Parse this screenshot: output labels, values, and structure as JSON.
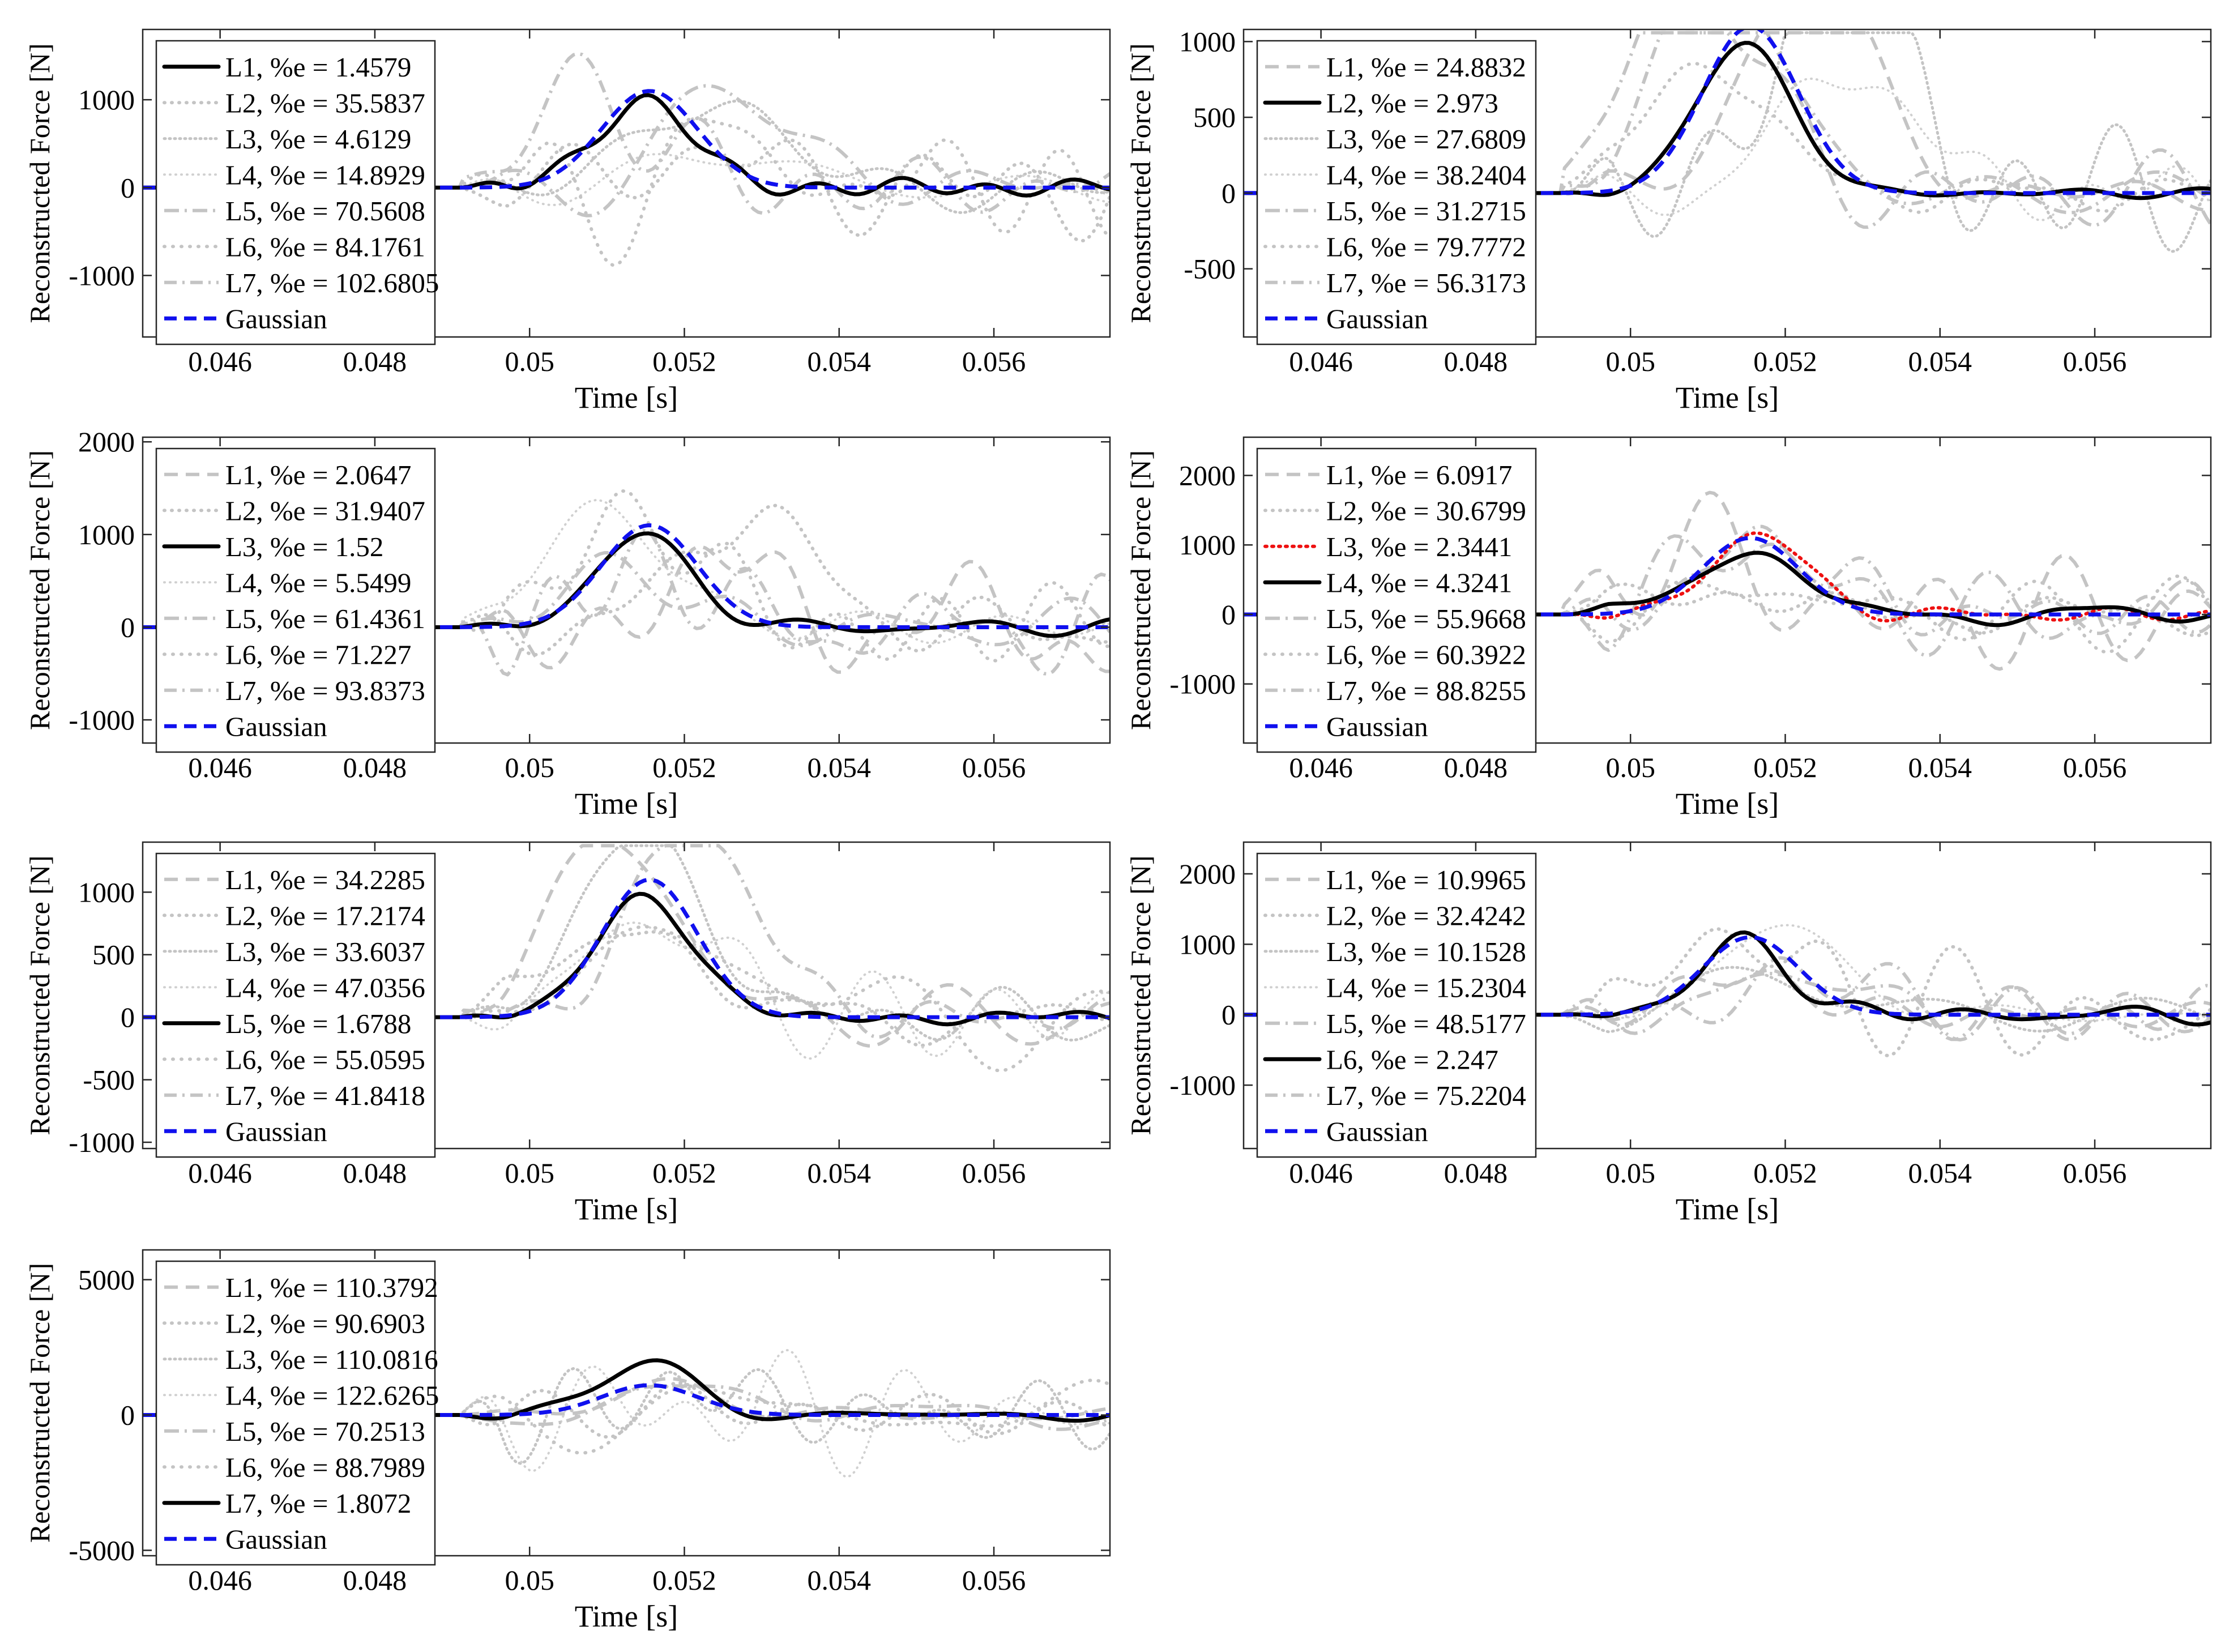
{
  "chart_data": [
    {
      "type": "line",
      "xlabel": "Time [s]",
      "ylabel": "Reconstructed Force [N]",
      "xlim": [
        0.045,
        0.0575
      ],
      "ylim": [
        -1700,
        1800
      ],
      "xticks": [
        0.046,
        0.048,
        0.05,
        0.052,
        0.054,
        0.056
      ],
      "xtick_labels": [
        "0.046",
        "0.048",
        "0.05",
        "0.052",
        "0.054",
        "0.056"
      ],
      "yticks": [
        -1000,
        0,
        1000
      ],
      "ytick_labels": [
        "-1000",
        "0",
        "1000"
      ],
      "best_index": 0,
      "highlight_index": null,
      "legend": [
        "L1, %e = 1.4579",
        "L2, %e = 35.5837",
        "L3, %e = 4.6129",
        "L4, %e = 14.8929",
        "L5, %e = 70.5608",
        "L6, %e = 84.1761",
        "L7, %e = 102.6805",
        "Gaussian"
      ]
    },
    {
      "type": "line",
      "xlabel": "Time [s]",
      "ylabel": "Reconstructed Force [N]",
      "xlim": [
        0.045,
        0.0575
      ],
      "ylim": [
        -950,
        1080
      ],
      "xticks": [
        0.046,
        0.048,
        0.05,
        0.052,
        0.054,
        0.056
      ],
      "xtick_labels": [
        "0.046",
        "0.048",
        "0.05",
        "0.052",
        "0.054",
        "0.056"
      ],
      "yticks": [
        -500,
        0,
        500,
        1000
      ],
      "ytick_labels": [
        "-500",
        "0",
        "500",
        "1000"
      ],
      "best_index": 1,
      "highlight_index": null,
      "legend": [
        "L1, %e = 24.8832",
        "L2, %e = 2.973",
        "L3, %e = 27.6809",
        "L4, %e = 38.2404",
        "L5, %e = 31.2715",
        "L6, %e = 79.7772",
        "L7, %e = 56.3173",
        "Gaussian"
      ]
    },
    {
      "type": "line",
      "xlabel": "Time [s]",
      "ylabel": "Reconstructed Force [N]",
      "xlim": [
        0.045,
        0.0575
      ],
      "ylim": [
        -1250,
        2050
      ],
      "xticks": [
        0.046,
        0.048,
        0.05,
        0.052,
        0.054,
        0.056
      ],
      "xtick_labels": [
        "0.046",
        "0.048",
        "0.05",
        "0.052",
        "0.054",
        "0.056"
      ],
      "yticks": [
        -1000,
        0,
        1000,
        2000
      ],
      "ytick_labels": [
        "-1000",
        "0",
        "1000",
        "2000"
      ],
      "best_index": 2,
      "highlight_index": null,
      "legend": [
        "L1, %e = 2.0647",
        "L2, %e = 31.9407",
        "L3, %e = 1.52",
        "L4, %e = 5.5499",
        "L5, %e = 61.4361",
        "L6, %e = 71.227",
        "L7, %e = 93.8373",
        "Gaussian"
      ]
    },
    {
      "type": "line",
      "xlabel": "Time [s]",
      "ylabel": "Reconstructed Force [N]",
      "xlim": [
        0.045,
        0.0575
      ],
      "ylim": [
        -1850,
        2550
      ],
      "xticks": [
        0.046,
        0.048,
        0.05,
        0.052,
        0.054,
        0.056
      ],
      "xtick_labels": [
        "0.046",
        "0.048",
        "0.05",
        "0.052",
        "0.054",
        "0.056"
      ],
      "yticks": [
        -1000,
        0,
        1000,
        2000
      ],
      "ytick_labels": [
        "-1000",
        "0",
        "1000",
        "2000"
      ],
      "best_index": 3,
      "highlight_index": 2,
      "legend": [
        "L1, %e = 6.0917",
        "L2, %e = 30.6799",
        "L3, %e = 2.3441",
        "L4, %e = 4.3241",
        "L5, %e = 55.9668",
        "L6, %e = 60.3922",
        "L7, %e = 88.8255",
        "Gaussian"
      ]
    },
    {
      "type": "line",
      "xlabel": "Time [s]",
      "ylabel": "Reconstructed Force [N]",
      "xlim": [
        0.045,
        0.0575
      ],
      "ylim": [
        -1050,
        1400
      ],
      "xticks": [
        0.046,
        0.048,
        0.05,
        0.052,
        0.054,
        0.056
      ],
      "xtick_labels": [
        "0.046",
        "0.048",
        "0.05",
        "0.052",
        "0.054",
        "0.056"
      ],
      "yticks": [
        -1000,
        -500,
        0,
        500,
        1000
      ],
      "ytick_labels": [
        "-1000",
        "-500",
        "0",
        "500",
        "1000"
      ],
      "best_index": 4,
      "highlight_index": null,
      "legend": [
        "L1, %e = 34.2285",
        "L2, %e = 17.2174",
        "L3, %e = 33.6037",
        "L4, %e = 47.0356",
        "L5, %e = 1.6788",
        "L6, %e = 55.0595",
        "L7, %e = 41.8418",
        "Gaussian"
      ]
    },
    {
      "type": "line",
      "xlabel": "Time [s]",
      "ylabel": "Reconstructed Force [N]",
      "xlim": [
        0.045,
        0.0575
      ],
      "ylim": [
        -1900,
        2450
      ],
      "xticks": [
        0.046,
        0.048,
        0.05,
        0.052,
        0.054,
        0.056
      ],
      "xtick_labels": [
        "0.046",
        "0.048",
        "0.05",
        "0.052",
        "0.054",
        "0.056"
      ],
      "yticks": [
        -1000,
        0,
        1000,
        2000
      ],
      "ytick_labels": [
        "-1000",
        "0",
        "1000",
        "2000"
      ],
      "best_index": 5,
      "highlight_index": null,
      "legend": [
        "L1, %e = 10.9965",
        "L2, %e = 32.4242",
        "L3, %e = 10.1528",
        "L4, %e = 15.2304",
        "L5, %e = 48.5177",
        "L6, %e = 2.247",
        "L7, %e = 75.2204",
        "Gaussian"
      ]
    },
    {
      "type": "line",
      "xlabel": "Time [s]",
      "ylabel": "Reconstructed Force [N]",
      "xlim": [
        0.045,
        0.0575
      ],
      "ylim": [
        -5200,
        6100
      ],
      "xticks": [
        0.046,
        0.048,
        0.05,
        0.052,
        0.054,
        0.056
      ],
      "xtick_labels": [
        "0.046",
        "0.048",
        "0.05",
        "0.052",
        "0.054",
        "0.056"
      ],
      "yticks": [
        -5000,
        0,
        5000
      ],
      "ytick_labels": [
        "-5000",
        "0",
        "5000"
      ],
      "best_index": 6,
      "highlight_index": null,
      "legend": [
        "L1, %e = 110.3792",
        "L2, %e = 90.6903",
        "L3, %e = 110.0816",
        "L4, %e = 122.6265",
        "L5, %e = 70.2513",
        "L6, %e = 88.7989",
        "L7, %e = 1.8072",
        "Gaussian"
      ]
    }
  ]
}
